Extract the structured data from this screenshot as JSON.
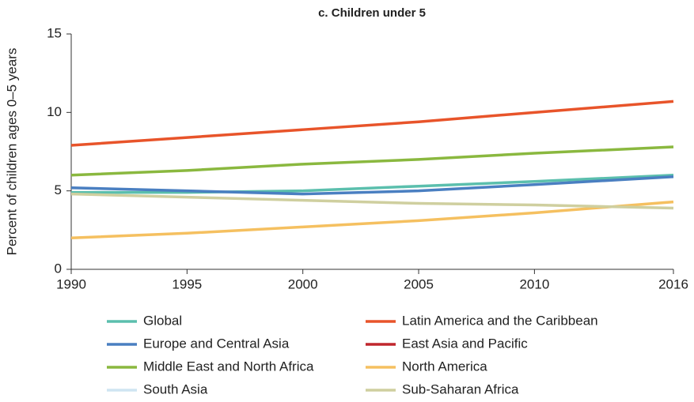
{
  "chart_data": {
    "type": "line",
    "title": "c. Children under 5",
    "y_label": "Percent of children ages 0–5 years",
    "x": [
      1990,
      1995,
      2000,
      2005,
      2010,
      2016
    ],
    "xlim": [
      1990,
      2016
    ],
    "xticks": [
      1990,
      1995,
      2000,
      2005,
      2010,
      2016
    ],
    "ylim": [
      0,
      15
    ],
    "yticks": [
      0,
      5,
      10,
      15
    ],
    "grid": false,
    "series": [
      {
        "name": "Global",
        "color": "#5bbfad",
        "values": [
          4.9,
          4.9,
          5.0,
          5.3,
          5.6,
          6.0
        ]
      },
      {
        "name": "Latin America and the Caribbean",
        "color": "#e8542a",
        "values": [
          7.9,
          8.4,
          8.9,
          9.4,
          10.0,
          10.7
        ]
      },
      {
        "name": "Europe and Central Asia",
        "color": "#4a7fc1",
        "values": [
          5.2,
          5.0,
          4.8,
          5.0,
          5.4,
          5.9
        ]
      },
      {
        "name": "East Asia and Pacific",
        "color": "#c0272d",
        "values": [
          null,
          null,
          null,
          null,
          null,
          null
        ]
      },
      {
        "name": "Middle East and North Africa",
        "color": "#8ab83f",
        "values": [
          6.0,
          6.3,
          6.7,
          7.0,
          7.4,
          7.8
        ]
      },
      {
        "name": "North America",
        "color": "#f5c060",
        "values": [
          2.0,
          2.3,
          2.7,
          3.1,
          3.6,
          4.3
        ]
      },
      {
        "name": "South Asia",
        "color": "#cfe5f2",
        "values": [
          null,
          null,
          null,
          null,
          null,
          null
        ]
      },
      {
        "name": "Sub-Saharan Africa",
        "color": "#cfcf9f",
        "values": [
          4.8,
          4.6,
          4.4,
          4.2,
          4.1,
          3.9
        ]
      }
    ]
  }
}
